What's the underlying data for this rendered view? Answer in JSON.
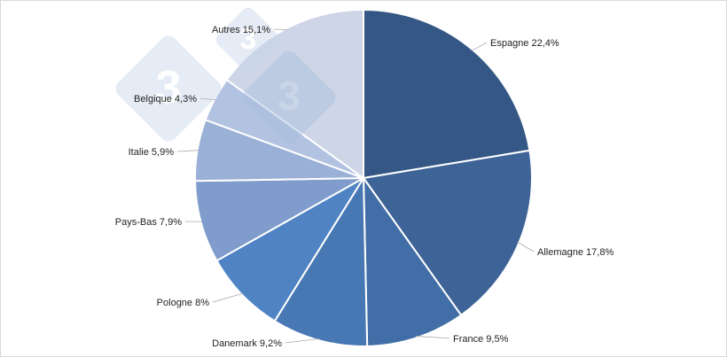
{
  "chart_data": {
    "type": "pie",
    "start": "top",
    "direction": "clockwise",
    "categories": [
      "Espagne",
      "Allemagne",
      "France",
      "Danemark",
      "Pologne",
      "Pays-Bas",
      "Italie",
      "Belgique",
      "Autres"
    ],
    "values": [
      22.4,
      17.8,
      9.5,
      9.2,
      8,
      7.9,
      5.9,
      4.3,
      15.1
    ],
    "labels": [
      "Espagne 22,4%",
      "Allemagne 17,8%",
      "France 9,5%",
      "Danemark 9,2%",
      "Pologne 8%",
      "Pays-Bas 7,9%",
      "Italie 5,9%",
      "Belgique 4,3%",
      "Autres 15,1%"
    ],
    "colors": [
      "#345785",
      "#3e6396",
      "#416ea6",
      "#4878b4",
      "#4f83c4",
      "#7f9ccc",
      "#9bb0d7",
      "#b2c2e1",
      "#cdd5e7"
    ]
  },
  "watermark": "3"
}
